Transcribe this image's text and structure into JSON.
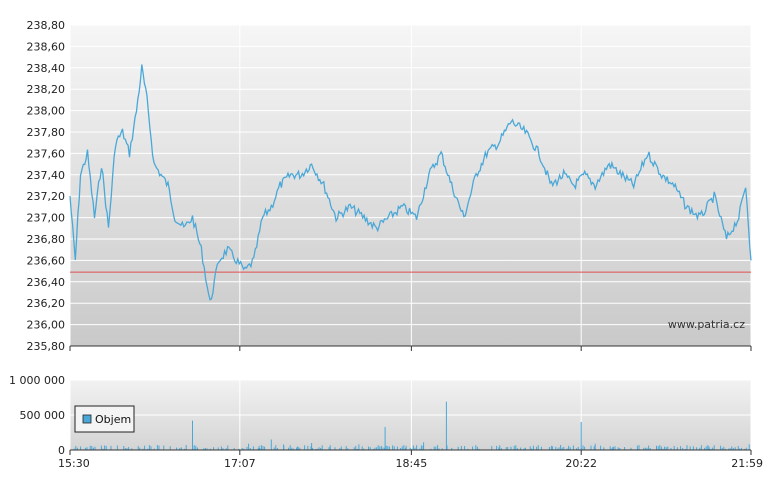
{
  "watermark": "www.patria.cz",
  "chart_data": [
    {
      "type": "line",
      "name_hint": "price",
      "x_ticks": [
        "15:30",
        "17:07",
        "18:45",
        "20:22",
        "21:59"
      ],
      "x_range": [
        "15:30",
        "21:59"
      ],
      "y_ticks": [
        "235,80",
        "236,00",
        "236,20",
        "236,40",
        "236,60",
        "236,80",
        "237,00",
        "237,20",
        "237,40",
        "237,60",
        "237,80",
        "238,00",
        "238,20",
        "238,40",
        "238,60",
        "238,80"
      ],
      "ylim": [
        235.8,
        238.8
      ],
      "reference_line": 236.49,
      "reference_color": "#e05050",
      "line_color": "#4aa8d8",
      "grid": true,
      "series": [
        {
          "x": [
            "15:30",
            "15:33",
            "15:36",
            "15:40",
            "15:44",
            "15:48",
            "15:52",
            "15:56",
            "16:00",
            "16:04",
            "16:08",
            "16:11",
            "16:14",
            "16:18",
            "16:22",
            "16:26",
            "16:30",
            "16:35",
            "16:40",
            "16:45",
            "16:50",
            "16:55",
            "17:00",
            "17:05",
            "17:10",
            "17:15",
            "17:20",
            "17:25",
            "17:30",
            "17:36",
            "17:42",
            "17:48",
            "17:55",
            "18:02",
            "18:10",
            "18:18",
            "18:25",
            "18:32",
            "18:40",
            "18:48",
            "18:55",
            "19:02",
            "19:08",
            "19:15",
            "19:22",
            "19:28",
            "19:35",
            "19:42",
            "19:50",
            "19:58",
            "20:05",
            "20:12",
            "20:18",
            "20:24",
            "20:30",
            "20:38",
            "20:45",
            "20:52",
            "21:00",
            "21:08",
            "21:15",
            "21:22",
            "21:30",
            "21:38",
            "21:45",
            "21:52",
            "21:56",
            "21:59"
          ],
          "y": [
            237.2,
            236.6,
            237.4,
            237.6,
            237.0,
            237.5,
            236.9,
            237.7,
            237.8,
            237.6,
            238.0,
            238.4,
            238.1,
            237.5,
            237.4,
            237.3,
            237.0,
            236.9,
            237.0,
            236.7,
            236.2,
            236.6,
            236.7,
            236.6,
            236.5,
            236.6,
            237.0,
            237.1,
            237.3,
            237.4,
            237.4,
            237.5,
            237.3,
            237.0,
            237.1,
            237.0,
            236.9,
            237.0,
            237.1,
            237.0,
            237.4,
            237.6,
            237.3,
            237.0,
            237.4,
            237.6,
            237.7,
            237.9,
            237.8,
            237.6,
            237.3,
            237.4,
            237.3,
            237.4,
            237.3,
            237.5,
            237.4,
            237.3,
            237.6,
            237.4,
            237.3,
            237.1,
            237.0,
            237.2,
            236.8,
            237.0,
            237.3,
            236.6
          ]
        }
      ]
    },
    {
      "type": "bar",
      "name_hint": "volume",
      "x_ticks": [
        "15:30",
        "17:07",
        "18:45",
        "20:22",
        "21:59"
      ],
      "x_range": [
        "15:30",
        "21:59"
      ],
      "y_ticks": [
        "0",
        "500 000",
        "1 000 000"
      ],
      "ylim": [
        0,
        1000000
      ],
      "bar_color": "#4aa8d8",
      "legend": {
        "label": "Objem",
        "placement": "left"
      },
      "grid": true,
      "series": [
        {
          "x": [
            "16:40",
            "16:52",
            "17:12",
            "17:18",
            "17:25",
            "17:32",
            "17:40",
            "17:48",
            "17:58",
            "18:05",
            "18:15",
            "18:30",
            "18:42",
            "18:52",
            "19:00",
            "19:05",
            "19:20",
            "19:35",
            "19:50",
            "20:05",
            "20:22",
            "20:30",
            "20:40",
            "20:55",
            "21:05",
            "21:20",
            "21:35",
            "21:50",
            "21:58"
          ],
          "y": [
            420000,
            40000,
            90000,
            60000,
            150000,
            80000,
            50000,
            100000,
            40000,
            50000,
            80000,
            330000,
            60000,
            110000,
            70000,
            690000,
            50000,
            40000,
            35000,
            60000,
            400000,
            90000,
            40000,
            70000,
            60000,
            30000,
            50000,
            40000,
            80000
          ]
        }
      ]
    }
  ]
}
